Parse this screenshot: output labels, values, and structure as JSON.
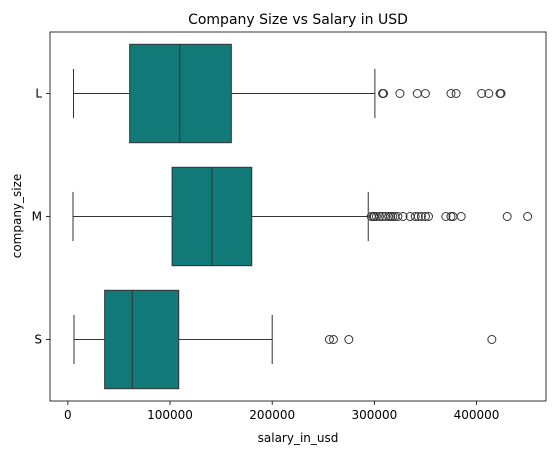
{
  "chart_data": {
    "type": "boxplot",
    "orientation": "horizontal",
    "title": "Company Size vs Salary in USD",
    "xlabel": "salary_in_usd",
    "ylabel": "company_size",
    "xlim": [
      -17500,
      468000
    ],
    "xticks": [
      0,
      100000,
      200000,
      300000,
      400000
    ],
    "xtick_labels": [
      "0",
      "100000",
      "200000",
      "300000",
      "400000"
    ],
    "box_color": "#117a78",
    "grid": false,
    "categories": [
      "L",
      "M",
      "S"
    ],
    "boxes": [
      {
        "category": "L",
        "whisker_low": 5500,
        "q1": 60500,
        "median": 109500,
        "q3": 160000,
        "whisker_high": 300500,
        "outliers": [
          308000,
          309000,
          325000,
          342000,
          350000,
          375000,
          380000,
          405000,
          412000,
          423000,
          424000
        ]
      },
      {
        "category": "M",
        "whisker_low": 5000,
        "q1": 102000,
        "median": 141000,
        "q3": 180000,
        "whisker_high": 294000,
        "outliers": [
          297000,
          299000,
          300000,
          302000,
          305000,
          308000,
          311000,
          314000,
          316000,
          318000,
          320000,
          323000,
          328000,
          335000,
          340000,
          343000,
          346000,
          350000,
          353000,
          370000,
          375000,
          377000,
          385000,
          430000,
          450000
        ]
      },
      {
        "category": "S",
        "whisker_low": 6000,
        "q1": 36000,
        "median": 63000,
        "q3": 108500,
        "whisker_high": 200000,
        "outliers": [
          256000,
          260000,
          275000,
          415000
        ]
      }
    ]
  }
}
